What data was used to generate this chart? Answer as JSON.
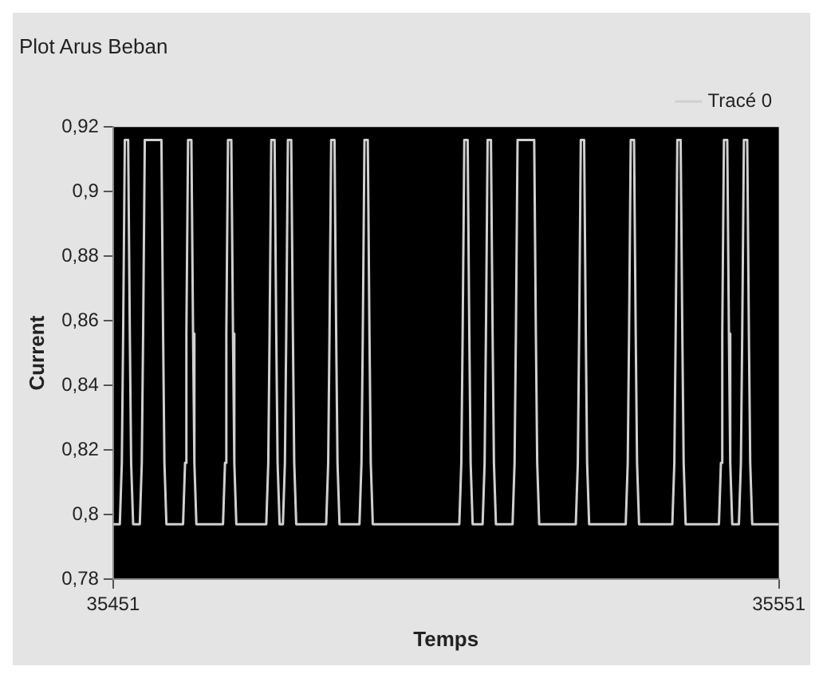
{
  "chart_data": {
    "type": "line",
    "title": "Plot Arus Beban",
    "xlabel": "Temps",
    "ylabel": "Current",
    "legend": "top right",
    "grid": false,
    "marker": "none",
    "line_style": "solid",
    "xlim": [
      35451,
      35551
    ],
    "xticks": [
      35451,
      35551
    ],
    "ylim": [
      0.78,
      0.92
    ],
    "yticks": [
      {
        "value": 0.78,
        "label": "0,78"
      },
      {
        "value": 0.8,
        "label": "0,8"
      },
      {
        "value": 0.82,
        "label": "0,82"
      },
      {
        "value": 0.84,
        "label": "0,84"
      },
      {
        "value": 0.86,
        "label": "0,86"
      },
      {
        "value": 0.88,
        "label": "0,88"
      },
      {
        "value": 0.9,
        "label": "0,9"
      },
      {
        "value": 0.92,
        "label": "0,92"
      }
    ],
    "series": [
      {
        "name": "Tracé 0",
        "color": "#d0d0d0",
        "x": [
          35451,
          35452,
          35452.3,
          35452.5,
          35452.75,
          35453.25,
          35453.5,
          35453.7,
          35454,
          35455,
          35455.3,
          35455.5,
          35455.75,
          35458.25,
          35458.5,
          35458.7,
          35459,
          35461.5,
          35461.8,
          35462,
          35462.25,
          35462.75,
          35463,
          35463.2,
          35463.5,
          35467.5,
          35467.8,
          35468,
          35468.25,
          35468.75,
          35469,
          35469.2,
          35469.5,
          35474,
          35474.3,
          35474.5,
          35474.75,
          35475.25,
          35475.5,
          35475.7,
          35476,
          35476.5,
          35476.8,
          35477,
          35477.25,
          35477.75,
          35478,
          35478.2,
          35478.5,
          35483,
          35483.3,
          35483.5,
          35483.75,
          35484.25,
          35484.5,
          35484.7,
          35485,
          35488,
          35488.3,
          35488.5,
          35488.75,
          35489.25,
          35489.5,
          35489.7,
          35490,
          35503,
          35503.3,
          35503.5,
          35503.75,
          35504.25,
          35504.5,
          35504.7,
          35505,
          35506.5,
          35506.8,
          35507,
          35507.25,
          35507.75,
          35508,
          35508.2,
          35508.5,
          35511,
          35511.3,
          35511.5,
          35511.75,
          35514.25,
          35514.5,
          35514.7,
          35515,
          35520.5,
          35520.8,
          35521,
          35521.25,
          35521.75,
          35522,
          35522.2,
          35522.5,
          35528,
          35528.3,
          35528.5,
          35528.75,
          35529.25,
          35529.5,
          35529.7,
          35530,
          35535,
          35535.3,
          35535.5,
          35535.75,
          35536.25,
          35536.5,
          35536.7,
          35537,
          35542,
          35542.3,
          35542.5,
          35542.75,
          35543.25,
          35543.5,
          35543.7,
          35544,
          35545,
          35545.3,
          35545.5,
          35545.75,
          35546.25,
          35546.5,
          35546.7,
          35547,
          35551
        ],
        "values": [
          0.797,
          0.797,
          0.816,
          0.856,
          0.916,
          0.916,
          0.856,
          0.816,
          0.797,
          0.797,
          0.816,
          0.856,
          0.916,
          0.916,
          0.856,
          0.816,
          0.797,
          0.797,
          0.816,
          0.856,
          0.916,
          0.916,
          0.856,
          0.816,
          0.797,
          0.797,
          0.816,
          0.856,
          0.916,
          0.916,
          0.856,
          0.816,
          0.797,
          0.797,
          0.816,
          0.856,
          0.916,
          0.916,
          0.856,
          0.816,
          0.797,
          0.797,
          0.816,
          0.856,
          0.916,
          0.916,
          0.856,
          0.816,
          0.797,
          0.797,
          0.816,
          0.856,
          0.916,
          0.916,
          0.856,
          0.816,
          0.797,
          0.797,
          0.816,
          0.856,
          0.916,
          0.916,
          0.856,
          0.816,
          0.797,
          0.797,
          0.816,
          0.856,
          0.916,
          0.916,
          0.856,
          0.816,
          0.797,
          0.797,
          0.816,
          0.856,
          0.916,
          0.916,
          0.856,
          0.816,
          0.797,
          0.797,
          0.816,
          0.856,
          0.916,
          0.916,
          0.856,
          0.816,
          0.797,
          0.797,
          0.816,
          0.856,
          0.916,
          0.916,
          0.856,
          0.816,
          0.797,
          0.797,
          0.816,
          0.856,
          0.916,
          0.916,
          0.856,
          0.816,
          0.797,
          0.797,
          0.816,
          0.856,
          0.916,
          0.916,
          0.856,
          0.816,
          0.797,
          0.797,
          0.816,
          0.856,
          0.916,
          0.916,
          0.856,
          0.816,
          0.797,
          0.797,
          0.816,
          0.856,
          0.916,
          0.916,
          0.856,
          0.816,
          0.797,
          0.797
        ]
      }
    ]
  }
}
